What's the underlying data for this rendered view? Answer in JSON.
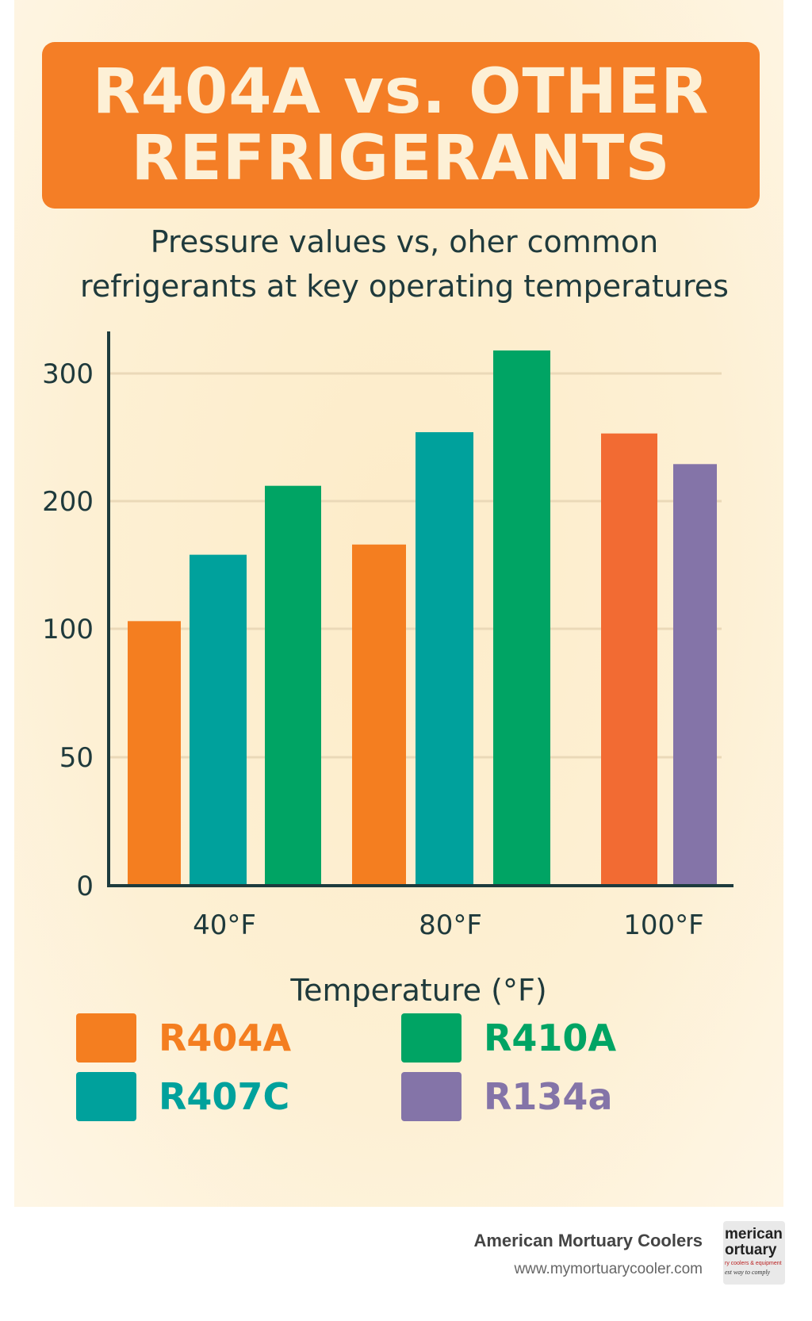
{
  "title": {
    "line1": "R404A vs. OTHER",
    "line2": "REFRIGERANTS"
  },
  "subtitle": {
    "line1": "Pressure values vs, oher common",
    "line2": "refrigerants at key operating temperatures"
  },
  "colors": {
    "title_bg": "#f47e26",
    "background": "#fdecc9",
    "text": "#1f3a3c"
  },
  "chart_data": {
    "type": "bar",
    "title": "",
    "xlabel": "Temperature (°F)",
    "ylabel": "",
    "y_ticks": [
      0,
      50,
      100,
      200,
      300
    ],
    "ylim": [
      0,
      330
    ],
    "grid": true,
    "legend_position": "bottom",
    "categories": [
      "40°F",
      "80°F",
      "100°F"
    ],
    "bars": [
      {
        "category": "40°F",
        "series": "R404A",
        "value": 106
      },
      {
        "category": "40°F",
        "series": "R407C",
        "value": 158
      },
      {
        "category": "40°F",
        "series": "R410A",
        "value": 212
      },
      {
        "category": "80°F",
        "series": "R404A",
        "value": 166
      },
      {
        "category": "80°F",
        "series": "R407C",
        "value": 254
      },
      {
        "category": "80°F",
        "series": "R410A",
        "value": 318
      },
      {
        "category": "100°F",
        "series": "R404A",
        "value": 253
      },
      {
        "category": "100°F",
        "series": "R134a",
        "value": 229
      }
    ],
    "series": [
      {
        "name": "R404A",
        "color": "#f47e20",
        "alt_color": "#f26b33"
      },
      {
        "name": "R407C",
        "color": "#00a19c"
      },
      {
        "name": "R410A",
        "color": "#00a464"
      },
      {
        "name": "R134a",
        "color": "#8474a8"
      }
    ]
  },
  "legend": [
    {
      "label": "R404A",
      "color": "#f47e20"
    },
    {
      "label": "R410A",
      "color": "#00a464"
    },
    {
      "label": "R407C",
      "color": "#00a19c"
    },
    {
      "label": "R134a",
      "color": "#8474a8"
    }
  ],
  "footer": {
    "company": "American Mortuary Coolers",
    "url": "www.mymortuarycooler.com",
    "logo_line1": "merican",
    "logo_line2": "ortuary",
    "logo_line3": "ry coolers & equipment",
    "logo_line4": "est way to comply"
  }
}
